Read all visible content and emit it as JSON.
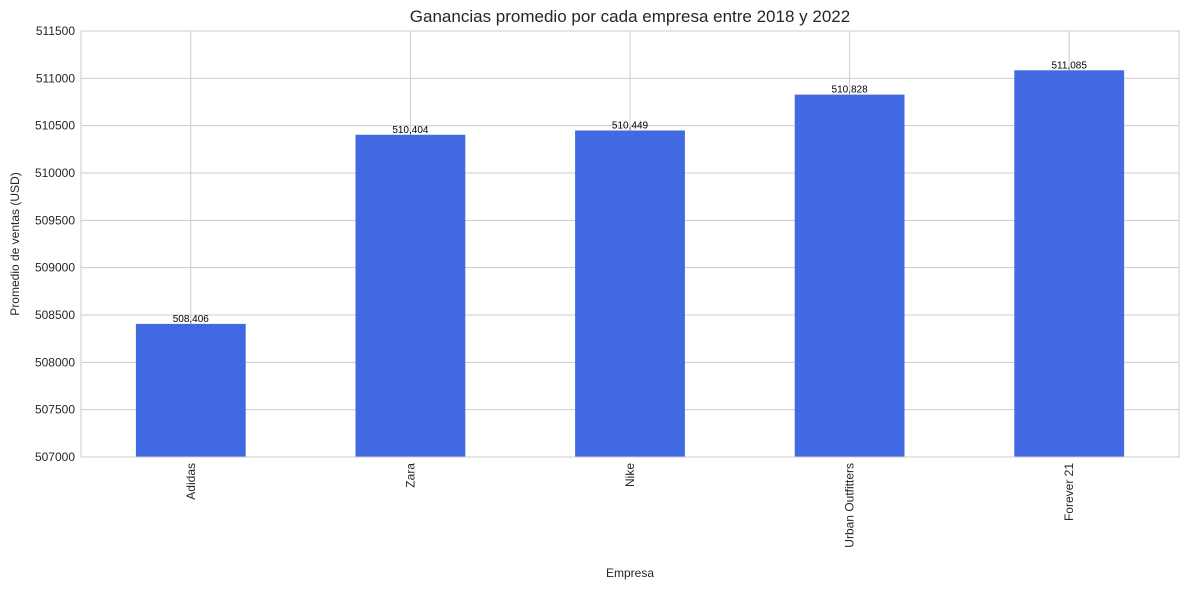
{
  "chart_data": {
    "type": "bar",
    "title": "Ganancias promedio por cada empresa entre 2018 y 2022",
    "xlabel": "Empresa",
    "ylabel": "Promedio de ventas (USD)",
    "categories": [
      "Adidas",
      "Zara",
      "Nike",
      "Urban Outfitters",
      "Forever 21"
    ],
    "values": [
      508406,
      510404,
      510449,
      510828,
      511085
    ],
    "data_labels": [
      "508,406",
      "510,404",
      "510,449",
      "510,828",
      "511,085"
    ],
    "ylim": [
      507000,
      511500
    ],
    "yticks": [
      507000,
      507500,
      508000,
      508500,
      509000,
      509500,
      510000,
      510500,
      511000,
      511500
    ],
    "ytick_labels": [
      "507000",
      "507500",
      "508000",
      "508500",
      "509000",
      "509500",
      "510000",
      "510500",
      "511000",
      "511500"
    ],
    "grid": true,
    "bar_color": "#4169e1",
    "grid_color": "#cccccc",
    "spine_color": "#cccccc"
  }
}
